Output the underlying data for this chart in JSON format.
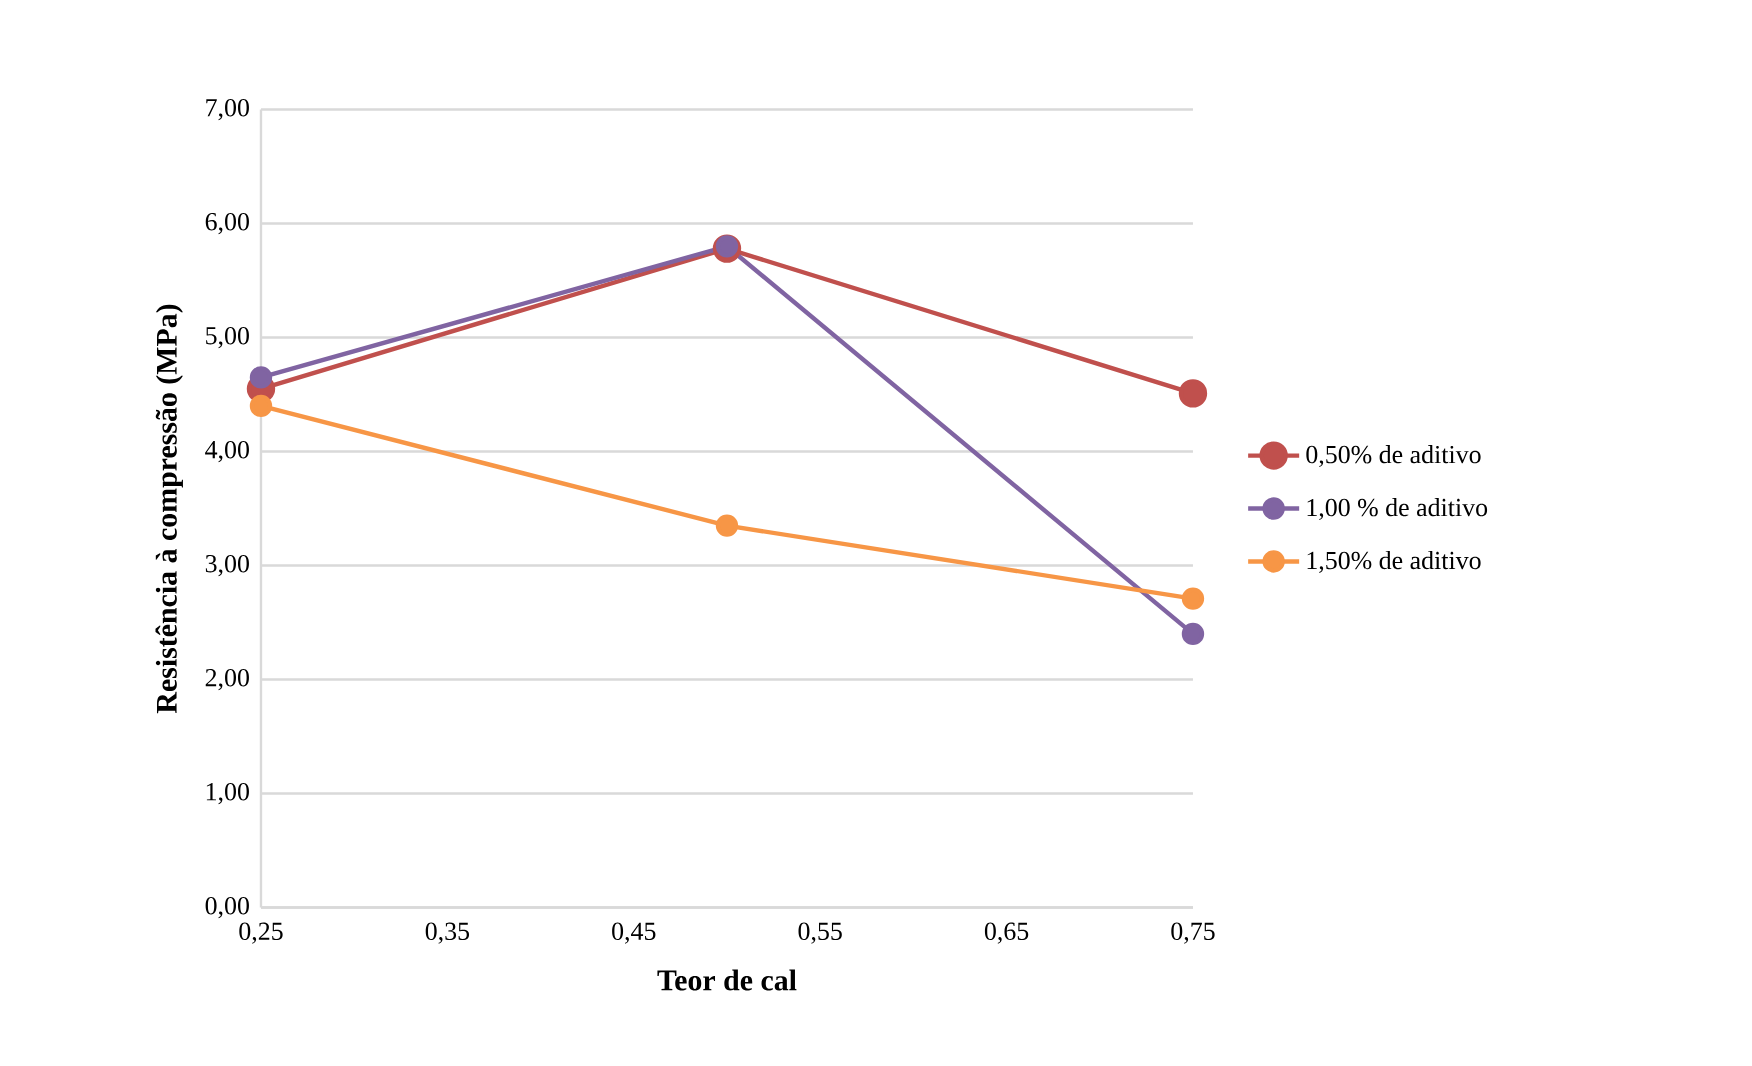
{
  "chart_data": {
    "type": "line",
    "xlabel": "Teor de cal",
    "ylabel": "Resistência à compressão (MPa)",
    "x": [
      0.25,
      0.5,
      0.75
    ],
    "series": [
      {
        "name": "0,50% de aditivo",
        "color": "#c0504d",
        "values": [
          4.55,
          5.78,
          4.51
        ]
      },
      {
        "name": "1,00 % de aditivo",
        "color": "#8064a2",
        "values": [
          4.65,
          5.8,
          2.4
        ]
      },
      {
        "name": "1,50% de aditivo",
        "color": "#f79646",
        "values": [
          4.4,
          3.35,
          2.71
        ]
      }
    ],
    "xlim": [
      0.25,
      0.75
    ],
    "xticks": [
      {
        "value": 0.25,
        "label": "0,25"
      },
      {
        "value": 0.35,
        "label": "0,35"
      },
      {
        "value": 0.45,
        "label": "0,45"
      },
      {
        "value": 0.55,
        "label": "0,55"
      },
      {
        "value": 0.65,
        "label": "0,65"
      },
      {
        "value": 0.75,
        "label": "0,75"
      }
    ],
    "ylim": [
      0,
      7
    ],
    "yticks": [
      {
        "value": 0,
        "label": "0,00"
      },
      {
        "value": 1,
        "label": "1,00"
      },
      {
        "value": 2,
        "label": "2,00"
      },
      {
        "value": 3,
        "label": "3,00"
      },
      {
        "value": 4,
        "label": "4,00"
      },
      {
        "value": 5,
        "label": "5,00"
      },
      {
        "value": 6,
        "label": "6,00"
      },
      {
        "value": 7,
        "label": "7,00"
      }
    ],
    "grid": "y",
    "legend": "right",
    "marker": "circle",
    "line_style": "solid"
  }
}
